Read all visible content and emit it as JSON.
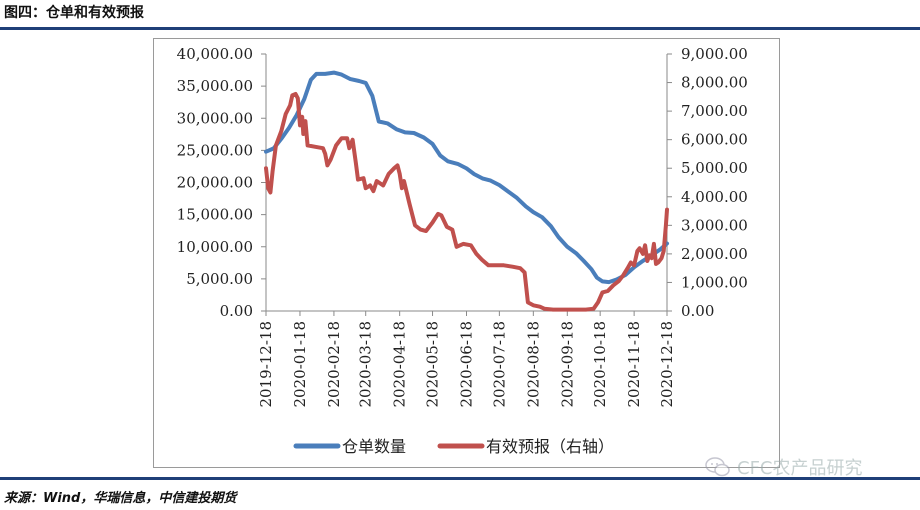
{
  "figure_title": "图四：仓单和有效预报",
  "source": "来源：Wind，华瑞信息，中信建投期货",
  "watermark": "CFC农产品研究",
  "chart_data": {
    "type": "line",
    "title": "",
    "x_ticks": [
      "2019-12-18",
      "2020-01-18",
      "2020-02-18",
      "2020-03-18",
      "2020-04-18",
      "2020-05-18",
      "2020-06-18",
      "2020-07-18",
      "2020-08-18",
      "2020-09-18",
      "2020-10-18",
      "2020-11-18",
      "2020-12-18"
    ],
    "left_axis": {
      "ylim": [
        0,
        40000
      ],
      "ticks": [
        "0.00",
        "5,000.00",
        "10,000.00",
        "15,000.00",
        "20,000.00",
        "25,000.00",
        "30,000.00",
        "35,000.00",
        "40,000.00"
      ]
    },
    "right_axis": {
      "ylim": [
        0,
        9000
      ],
      "ticks": [
        "0.00",
        "1,000.00",
        "2,000.00",
        "3,000.00",
        "4,000.00",
        "5,000.00",
        "6,000.00",
        "7,000.00",
        "8,000.00",
        "9,000.00"
      ]
    },
    "legend_position": "bottom",
    "series": [
      {
        "name": "仓单数量",
        "axis": "left",
        "color": "#4a7ebb",
        "points": [
          [
            "2019-12-18",
            24800
          ],
          [
            "2019-12-25",
            25300
          ],
          [
            "2020-01-01",
            26800
          ],
          [
            "2020-01-08",
            28500
          ],
          [
            "2020-01-15",
            30500
          ],
          [
            "2020-01-22",
            33000
          ],
          [
            "2020-01-28",
            36000
          ],
          [
            "2020-02-02",
            36900
          ],
          [
            "2020-02-10",
            36900
          ],
          [
            "2020-02-18",
            37100
          ],
          [
            "2020-02-25",
            36800
          ],
          [
            "2020-03-04",
            36100
          ],
          [
            "2020-03-12",
            35800
          ],
          [
            "2020-03-18",
            35500
          ],
          [
            "2020-03-24",
            33500
          ],
          [
            "2020-03-30",
            29500
          ],
          [
            "2020-04-07",
            29200
          ],
          [
            "2020-04-15",
            28300
          ],
          [
            "2020-04-23",
            27800
          ],
          [
            "2020-05-01",
            27700
          ],
          [
            "2020-05-10",
            27000
          ],
          [
            "2020-05-18",
            26000
          ],
          [
            "2020-05-25",
            24200
          ],
          [
            "2020-06-01",
            23300
          ],
          [
            "2020-06-10",
            22900
          ],
          [
            "2020-06-18",
            22200
          ],
          [
            "2020-06-25",
            21300
          ],
          [
            "2020-07-03",
            20600
          ],
          [
            "2020-07-10",
            20300
          ],
          [
            "2020-07-18",
            19600
          ],
          [
            "2020-07-26",
            18600
          ],
          [
            "2020-08-03",
            17600
          ],
          [
            "2020-08-11",
            16300
          ],
          [
            "2020-08-18",
            15400
          ],
          [
            "2020-08-26",
            14600
          ],
          [
            "2020-09-03",
            13200
          ],
          [
            "2020-09-10",
            11500
          ],
          [
            "2020-09-18",
            10000
          ],
          [
            "2020-09-26",
            9000
          ],
          [
            "2020-10-03",
            7800
          ],
          [
            "2020-10-10",
            6500
          ],
          [
            "2020-10-15",
            5200
          ],
          [
            "2020-10-20",
            4600
          ],
          [
            "2020-10-26",
            4500
          ],
          [
            "2020-11-02",
            4900
          ],
          [
            "2020-11-10",
            5600
          ],
          [
            "2020-11-18",
            6800
          ],
          [
            "2020-11-26",
            7800
          ],
          [
            "2020-12-05",
            8800
          ],
          [
            "2020-12-12",
            9600
          ],
          [
            "2020-12-18",
            10500
          ]
        ]
      },
      {
        "name": "有效预报（右轴）",
        "axis": "right",
        "color": "#c0504d",
        "points": [
          [
            "2019-12-18",
            5000
          ],
          [
            "2019-12-20",
            4300
          ],
          [
            "2019-12-22",
            4150
          ],
          [
            "2019-12-24",
            4900
          ],
          [
            "2019-12-27",
            5800
          ],
          [
            "2020-01-01",
            6300
          ],
          [
            "2020-01-05",
            6900
          ],
          [
            "2020-01-09",
            7200
          ],
          [
            "2020-01-11",
            7550
          ],
          [
            "2020-01-14",
            7600
          ],
          [
            "2020-01-16",
            7450
          ],
          [
            "2020-01-18",
            6500
          ],
          [
            "2020-01-20",
            6800
          ],
          [
            "2020-01-21",
            6200
          ],
          [
            "2020-01-23",
            6650
          ],
          [
            "2020-01-25",
            5800
          ],
          [
            "2020-02-01",
            5750
          ],
          [
            "2020-02-08",
            5700
          ],
          [
            "2020-02-10",
            5500
          ],
          [
            "2020-02-12",
            5100
          ],
          [
            "2020-02-15",
            5300
          ],
          [
            "2020-02-20",
            5800
          ],
          [
            "2020-02-25",
            6050
          ],
          [
            "2020-03-01",
            6050
          ],
          [
            "2020-03-03",
            5700
          ],
          [
            "2020-03-06",
            6000
          ],
          [
            "2020-03-09",
            5200
          ],
          [
            "2020-03-11",
            4600
          ],
          [
            "2020-03-16",
            4650
          ],
          [
            "2020-03-18",
            4300
          ],
          [
            "2020-03-22",
            4400
          ],
          [
            "2020-03-25",
            4200
          ],
          [
            "2020-03-28",
            4550
          ],
          [
            "2020-04-03",
            4400
          ],
          [
            "2020-04-08",
            4800
          ],
          [
            "2020-04-13",
            5000
          ],
          [
            "2020-04-16",
            5100
          ],
          [
            "2020-04-18",
            4800
          ],
          [
            "2020-04-20",
            4300
          ],
          [
            "2020-04-22",
            4550
          ],
          [
            "2020-04-27",
            3750
          ],
          [
            "2020-05-02",
            3000
          ],
          [
            "2020-05-07",
            2850
          ],
          [
            "2020-05-12",
            2800
          ],
          [
            "2020-05-18",
            3100
          ],
          [
            "2020-05-23",
            3400
          ],
          [
            "2020-05-26",
            3350
          ],
          [
            "2020-05-31",
            2950
          ],
          [
            "2020-06-05",
            2850
          ],
          [
            "2020-06-09",
            2250
          ],
          [
            "2020-06-15",
            2350
          ],
          [
            "2020-06-22",
            2300
          ],
          [
            "2020-06-27",
            2000
          ],
          [
            "2020-07-02",
            1800
          ],
          [
            "2020-07-08",
            1600
          ],
          [
            "2020-07-14",
            1600
          ],
          [
            "2020-07-22",
            1600
          ],
          [
            "2020-07-30",
            1550
          ],
          [
            "2020-08-06",
            1500
          ],
          [
            "2020-08-10",
            1350
          ],
          [
            "2020-08-13",
            300
          ],
          [
            "2020-08-18",
            200
          ],
          [
            "2020-08-24",
            150
          ],
          [
            "2020-08-28",
            80
          ],
          [
            "2020-09-05",
            50
          ],
          [
            "2020-09-18",
            50
          ],
          [
            "2020-10-05",
            50
          ],
          [
            "2020-10-12",
            80
          ],
          [
            "2020-10-16",
            300
          ],
          [
            "2020-10-20",
            650
          ],
          [
            "2020-10-25",
            700
          ],
          [
            "2020-10-30",
            900
          ],
          [
            "2020-11-04",
            1050
          ],
          [
            "2020-11-08",
            1250
          ],
          [
            "2020-11-12",
            1500
          ],
          [
            "2020-11-15",
            1700
          ],
          [
            "2020-11-18",
            1600
          ],
          [
            "2020-11-21",
            2100
          ],
          [
            "2020-11-23",
            2200
          ],
          [
            "2020-11-26",
            2000
          ],
          [
            "2020-11-28",
            2300
          ],
          [
            "2020-11-30",
            1750
          ],
          [
            "2020-12-02",
            1950
          ],
          [
            "2020-12-04",
            1850
          ],
          [
            "2020-12-06",
            2350
          ],
          [
            "2020-12-08",
            1650
          ],
          [
            "2020-12-10",
            1700
          ],
          [
            "2020-12-13",
            1850
          ],
          [
            "2020-12-15",
            2100
          ],
          [
            "2020-12-17",
            3000
          ],
          [
            "2020-12-18",
            3550
          ]
        ]
      }
    ]
  }
}
